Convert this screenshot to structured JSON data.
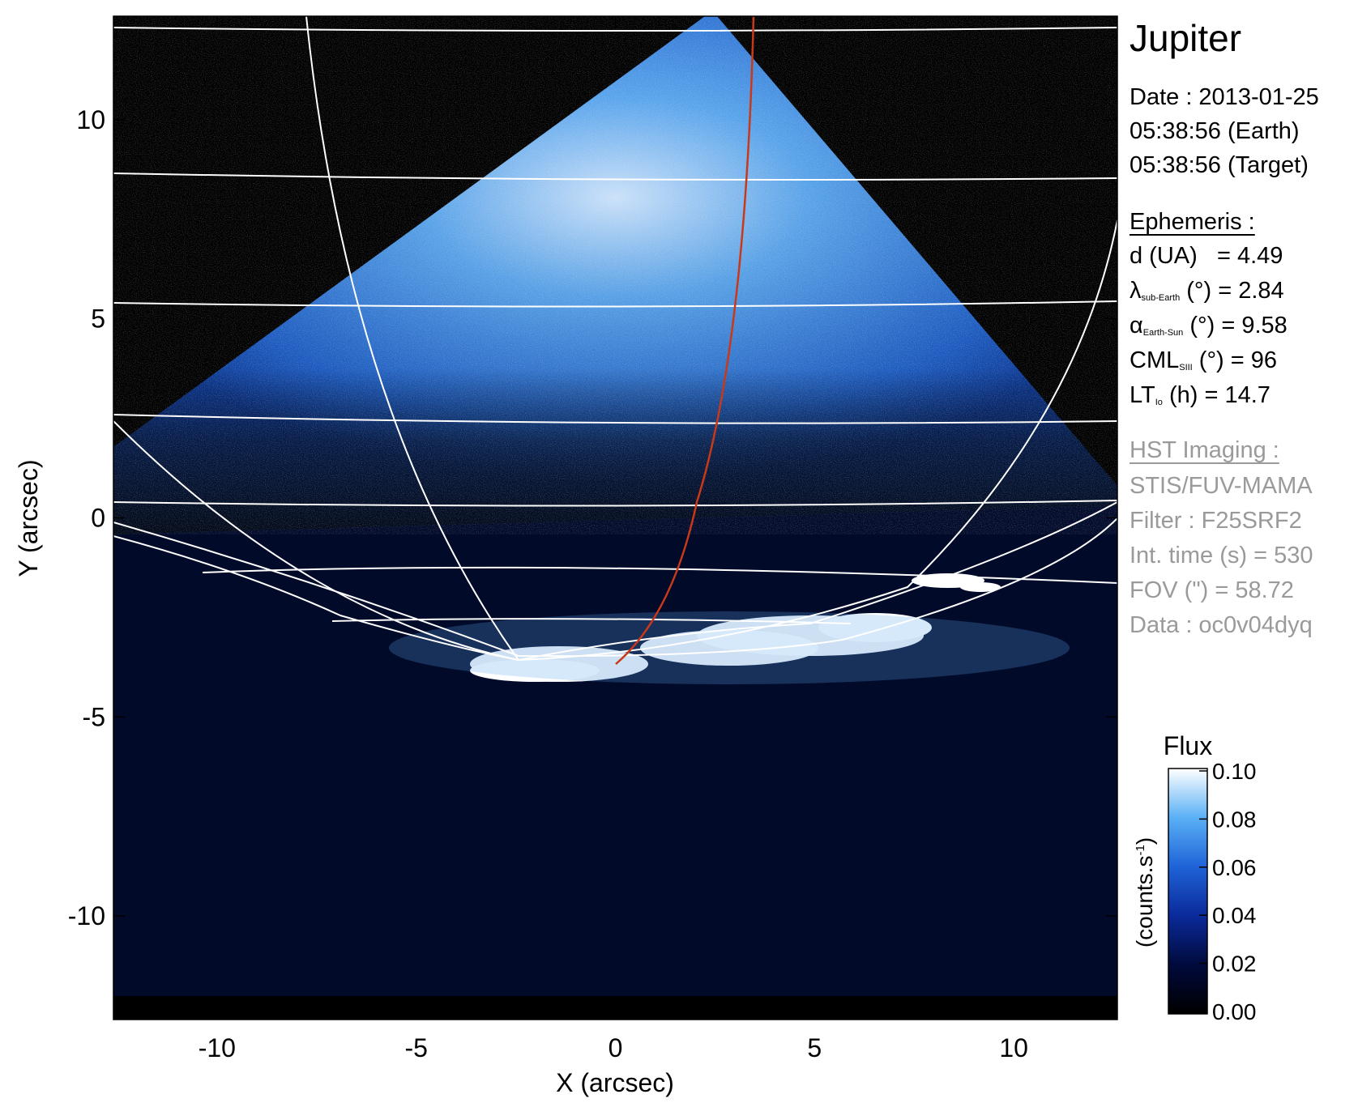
{
  "chart_data": {
    "type": "heatmap",
    "xlabel": "X (arcsec)",
    "ylabel": "Y (arcsec)",
    "xlim": [
      -12.6,
      12.6
    ],
    "ylim": [
      -12.6,
      12.6
    ],
    "xticks": [
      -10,
      -5,
      0,
      5,
      10
    ],
    "yticks": [
      10,
      5,
      0,
      -5,
      -10
    ],
    "colorbar": {
      "title": "Flux",
      "label": "(counts.s",
      "label_sup": "-1",
      "label_end": ")",
      "range": [
        0.0,
        0.1
      ],
      "ticks": [
        "0.10",
        "0.08",
        "0.06",
        "0.04",
        "0.02",
        "0.00"
      ],
      "colors": [
        "#000000",
        "#000a3c",
        "#0a2a9a",
        "#1f63d8",
        "#5ab0f5",
        "#ffffff"
      ]
    },
    "colors": {
      "grid": "#ffffff",
      "footprint": "#c8391a",
      "background": "#000000"
    }
  },
  "info": {
    "title": "Jupiter",
    "date": "Date : 2013-01-25",
    "time_earth": "05:38:56 (Earth)",
    "time_target": "05:38:56 (Target)",
    "ephemeris_header": "Ephemeris :",
    "ephemeris": [
      {
        "name": "d (UA)",
        "sub": "",
        "unit": "",
        "value": "   = 4.49"
      },
      {
        "name": "λ",
        "sub": "sub-Earth",
        "unit": " (°)",
        "value": " = 2.84"
      },
      {
        "name": "α",
        "sub": "Earth-Sun",
        "unit": " (°)",
        "value": " = 9.58"
      },
      {
        "name": "CML",
        "sub": "SIII",
        "unit": " (°)",
        "value": " = 96"
      },
      {
        "name": "LT",
        "sub": "Io",
        "unit": " (h)",
        "value": " = 14.7"
      }
    ],
    "hst_header": "HST Imaging :",
    "hst": [
      "STIS/FUV-MAMA",
      "Filter : F25SRF2",
      "Int. time (s) = 530",
      "FOV (\") = 58.72",
      "Data : oc0v04dyq"
    ]
  }
}
